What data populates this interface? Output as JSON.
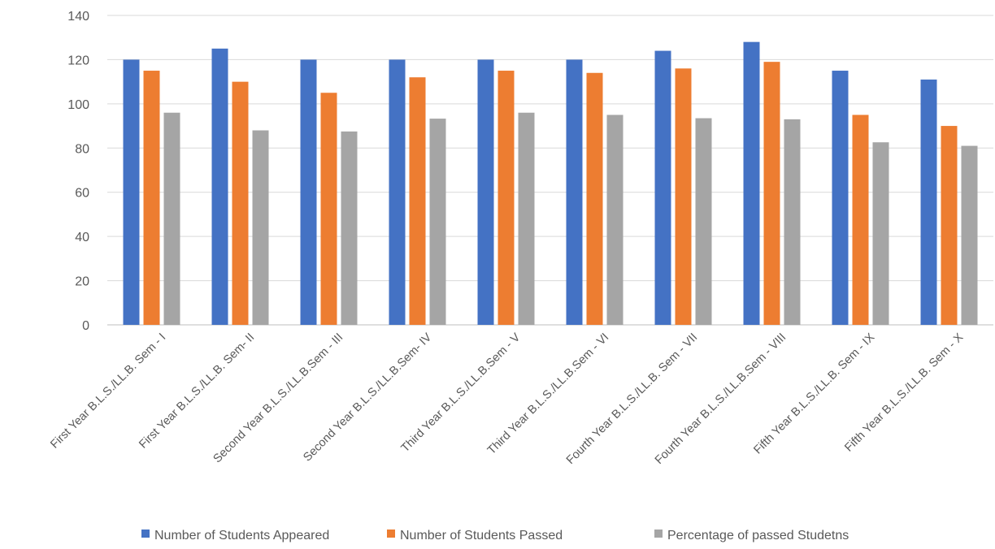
{
  "chart_data": {
    "type": "bar",
    "title": "",
    "xlabel": "",
    "ylabel": "",
    "ylim": [
      0,
      140
    ],
    "yticks": [
      0,
      20,
      40,
      60,
      80,
      100,
      120,
      140
    ],
    "grid": true,
    "legend_position": "bottom",
    "categories": [
      "First Year B.L.S./LL.B. Sem - I",
      "First Year B.L.S./LL.B. Sem- II",
      "Second Year B.L.S./LL.B.Sem - III",
      "Second Year B.L.S./LL.B.Sem- IV",
      "Third Year B.L.S./LL.B.Sem - V",
      "Third Year B.L.S./LL.B.Sem - VI",
      "Fourth Year B.L.S./LL.B. Sem - VII",
      "Fourth Year B.L.S./LL.B.Sem - VIII",
      "Fifth Year B.L.S./LL.B. Sem - IX",
      "Fifth Year B.L.S./LL.B. Sem - X"
    ],
    "series": [
      {
        "name": "Number of Students Appeared",
        "color": "#4472C4",
        "values": [
          120,
          125,
          120,
          120,
          120,
          120,
          124,
          128,
          115,
          111
        ]
      },
      {
        "name": "Number of Students Passed",
        "color": "#ED7D31",
        "values": [
          115,
          110,
          105,
          112,
          115,
          114,
          116,
          119,
          95,
          90
        ]
      },
      {
        "name": "Percentage of passed Studetns",
        "color": "#A5A5A5",
        "values": [
          96,
          88,
          87.5,
          93.3,
          96,
          95,
          93.5,
          93,
          82.6,
          81
        ]
      }
    ]
  }
}
